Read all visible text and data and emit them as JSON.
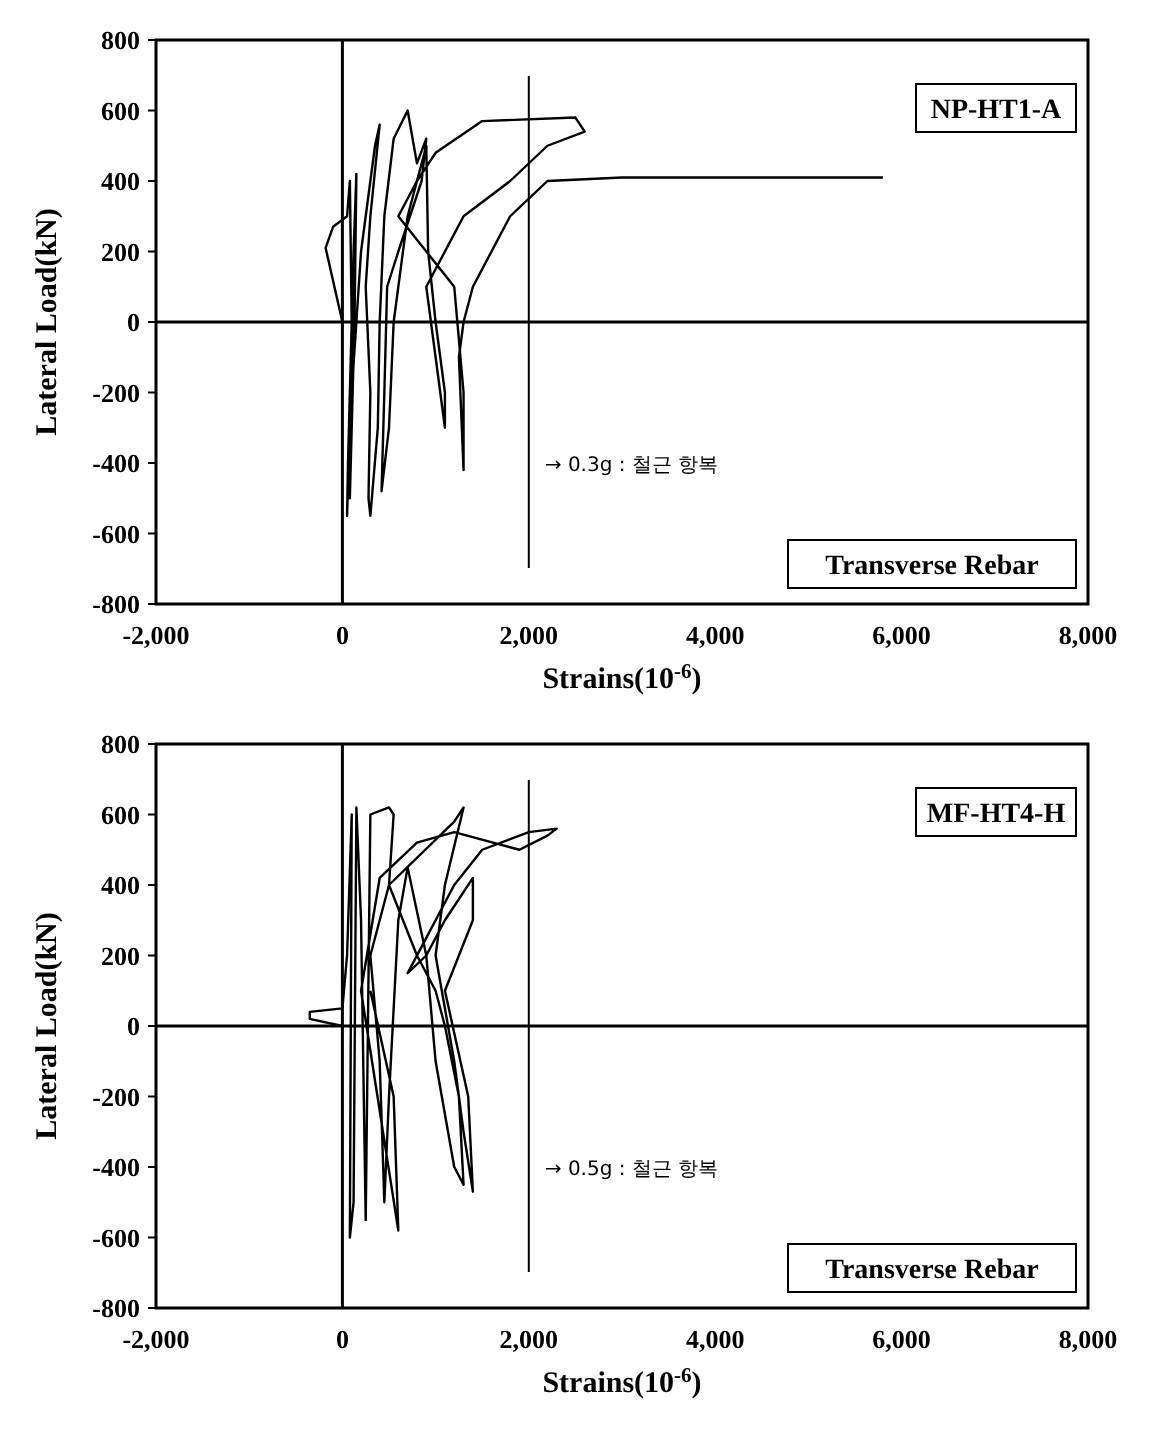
{
  "chart_data": [
    {
      "type": "line",
      "xlabel": "Strains(10$^{-6}$)",
      "ylabel": "Lateral Load(kN)",
      "xlim": [
        -2000,
        8000
      ],
      "ylim": [
        -800,
        800
      ],
      "xticks": [
        {
          "value": -2000,
          "label": "-2,000"
        },
        0,
        {
          "value": 2000,
          "label": "2,000"
        },
        {
          "value": 4000,
          "label": "4,000"
        },
        {
          "value": 6000,
          "label": "6,000"
        },
        {
          "value": 8000,
          "label": "8,000"
        }
      ],
      "yticks": [
        -800,
        -600,
        -400,
        -200,
        0,
        200,
        400,
        600,
        800
      ],
      "grid": false,
      "series": [
        {
          "color": "#000000",
          "x": [
            0,
            -180,
            -100,
            50,
            80,
            100,
            60,
            50,
            80,
            120,
            150,
            130,
            80,
            100,
            200,
            350,
            400,
            300,
            250,
            300,
            280,
            300,
            380,
            400,
            450,
            550,
            700,
            800,
            900,
            850,
            600,
            480,
            450,
            420,
            500,
            550,
            700,
            900,
            920,
            1000,
            1100,
            1100,
            1000,
            900,
            1300,
            1800,
            2200,
            2600,
            2500,
            1500,
            1000,
            800,
            600,
            1200,
            1300,
            1300,
            1250,
            1300,
            1400,
            1800,
            2000,
            2200,
            3000,
            5800
          ],
          "values": [
            0,
            210,
            270,
            300,
            400,
            0,
            -400,
            -550,
            -300,
            200,
            420,
            0,
            -500,
            -200,
            200,
            500,
            560,
            300,
            100,
            -200,
            -500,
            -550,
            -300,
            0,
            300,
            520,
            600,
            450,
            520,
            400,
            200,
            100,
            -200,
            -480,
            -300,
            0,
            300,
            500,
            200,
            0,
            -200,
            -300,
            -100,
            100,
            300,
            400,
            500,
            540,
            580,
            570,
            480,
            400,
            300,
            100,
            -200,
            -420,
            -100,
            0,
            100,
            300,
            350,
            400,
            410,
            410
          ]
        }
      ],
      "ref_lines": [
        {
          "axis": "x",
          "value": 0
        },
        {
          "axis": "y",
          "value": 0
        },
        {
          "axis": "x",
          "value": 2000,
          "label": "→ 0.3g : 철근 항복",
          "color": "#000000"
        }
      ],
      "annotations": [
        "NP-HT1-A",
        "Transverse Rebar"
      ]
    },
    {
      "type": "line",
      "xlabel": "Strains(10$^{-6}$)",
      "ylabel": "Lateral Load(kN)",
      "xlim": [
        -2000,
        8000
      ],
      "ylim": [
        -800,
        800
      ],
      "xticks": [
        {
          "value": -2000,
          "label": "-2,000"
        },
        0,
        {
          "value": 2000,
          "label": "2,000"
        },
        {
          "value": 4000,
          "label": "4,000"
        },
        {
          "value": 6000,
          "label": "6,000"
        },
        {
          "value": 8000,
          "label": "8,000"
        }
      ],
      "yticks": [
        -800,
        -600,
        -400,
        -200,
        0,
        200,
        400,
        600,
        800
      ],
      "grid": false,
      "series": [
        {
          "color": "#000000",
          "x": [
            0,
            -350,
            -350,
            0,
            50,
            100,
            80,
            120,
            150,
            200,
            250,
            300,
            500,
            550,
            500,
            300,
            400,
            450,
            500,
            600,
            700,
            900,
            1000,
            1200,
            1300,
            1250,
            1100,
            1000,
            800,
            500,
            1200,
            1300,
            1100,
            1000,
            1200,
            1300,
            1400,
            1350,
            1100,
            1400,
            1400,
            1100,
            900,
            700,
            1200,
            1500,
            2000,
            2300,
            2200,
            1900,
            1200,
            800,
            400,
            200,
            600,
            550,
            300
          ],
          "values": [
            0,
            20,
            40,
            50,
            200,
            600,
            -600,
            -500,
            620,
            300,
            -550,
            600,
            620,
            600,
            400,
            200,
            -100,
            -500,
            -200,
            300,
            450,
            200,
            -100,
            -400,
            -450,
            -200,
            0,
            100,
            200,
            400,
            580,
            620,
            400,
            200,
            -100,
            -300,
            -470,
            -200,
            100,
            300,
            420,
            300,
            200,
            150,
            400,
            500,
            550,
            560,
            540,
            500,
            550,
            520,
            420,
            100,
            -580,
            -200,
            100
          ]
        }
      ],
      "ref_lines": [
        {
          "axis": "x",
          "value": 0
        },
        {
          "axis": "y",
          "value": 0
        },
        {
          "axis": "x",
          "value": 2000,
          "label": "→ 0.5g : 철근 항복",
          "color": "#000000"
        }
      ],
      "annotations": [
        "MF-HT4-H",
        "Transverse Rebar"
      ]
    }
  ]
}
